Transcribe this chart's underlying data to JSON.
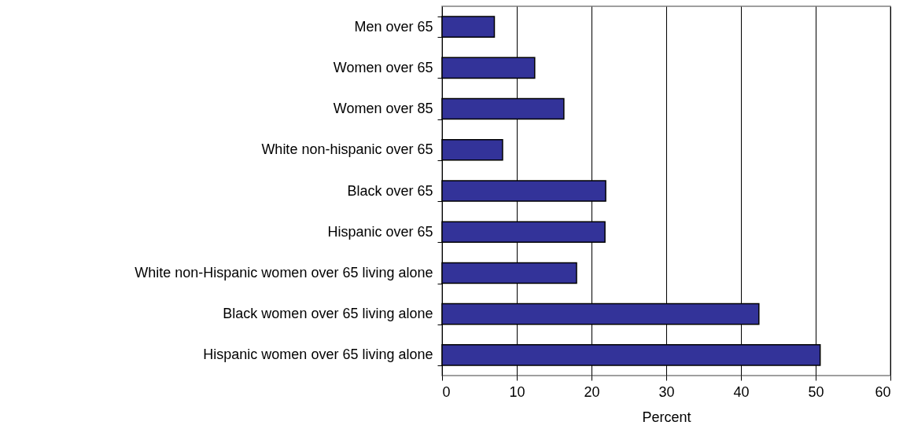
{
  "chart_data": {
    "type": "bar",
    "orientation": "horizontal",
    "xlabel": "Percent",
    "categories": [
      "Men over 65",
      "Women over 65",
      "Women over 85",
      "White non-hispanic over 65",
      "Black over 65",
      "Hispanic over 65",
      "White non-Hispanic women over 65 living alone",
      "Black women over 65 living alone",
      "Hispanic women over 65 living alone"
    ],
    "values": [
      7,
      12.4,
      16.3,
      8.1,
      21.9,
      21.8,
      18,
      42.4,
      50.6
    ],
    "color": "#333399",
    "xlim": [
      0,
      60
    ],
    "xticks": [
      0,
      10,
      20,
      30,
      40,
      50,
      60
    ],
    "grid": "x"
  }
}
